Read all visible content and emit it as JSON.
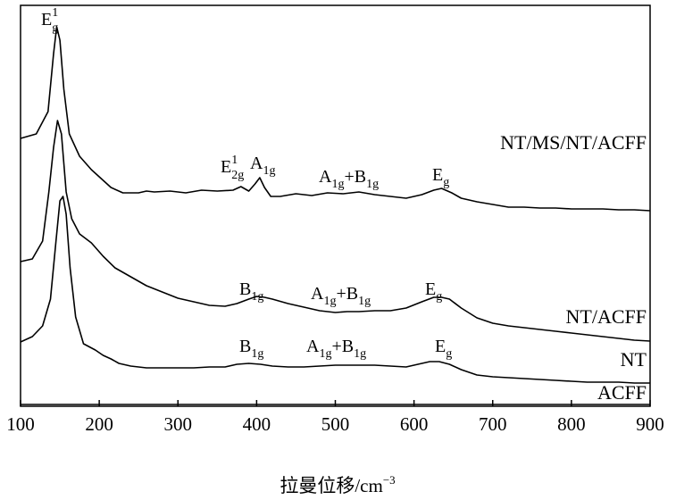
{
  "chart_data": {
    "type": "line",
    "title": "",
    "xlabel_main": "拉曼位移/cm",
    "xlabel_sup": "−3",
    "ylabel": "",
    "xlim": [
      100,
      900
    ],
    "x_ticks": [
      100,
      200,
      300,
      400,
      500,
      600,
      700,
      800,
      900
    ],
    "y_axis": "arbitrary intensity, stacked spectra, no ticks",
    "grid": false,
    "series": [
      {
        "name": "NT/MS/NT/ACFF",
        "points": [
          [
            100,
            155
          ],
          [
            120,
            150
          ],
          [
            135,
            125
          ],
          [
            142,
            60
          ],
          [
            146,
            30
          ],
          [
            150,
            45
          ],
          [
            155,
            100
          ],
          [
            162,
            150
          ],
          [
            175,
            175
          ],
          [
            190,
            190
          ],
          [
            205,
            202
          ],
          [
            215,
            210
          ],
          [
            230,
            216
          ],
          [
            250,
            216
          ],
          [
            260,
            214
          ],
          [
            270,
            215
          ],
          [
            290,
            214
          ],
          [
            310,
            216
          ],
          [
            330,
            213
          ],
          [
            350,
            214
          ],
          [
            370,
            213
          ],
          [
            380,
            209
          ],
          [
            390,
            214
          ],
          [
            398,
            206
          ],
          [
            404,
            199
          ],
          [
            410,
            210
          ],
          [
            418,
            220
          ],
          [
            430,
            220
          ],
          [
            450,
            217
          ],
          [
            470,
            219
          ],
          [
            490,
            216
          ],
          [
            510,
            217
          ],
          [
            530,
            215
          ],
          [
            550,
            218
          ],
          [
            570,
            220
          ],
          [
            590,
            222
          ],
          [
            610,
            218
          ],
          [
            625,
            213
          ],
          [
            635,
            211
          ],
          [
            648,
            216
          ],
          [
            660,
            222
          ],
          [
            680,
            226
          ],
          [
            700,
            229
          ],
          [
            720,
            232
          ],
          [
            740,
            232
          ],
          [
            760,
            233
          ],
          [
            780,
            233
          ],
          [
            800,
            234
          ],
          [
            820,
            234
          ],
          [
            840,
            234
          ],
          [
            860,
            235
          ],
          [
            880,
            235
          ],
          [
            900,
            236
          ]
        ]
      },
      {
        "name": "NT/ACFF",
        "points": [
          [
            100,
            293
          ],
          [
            115,
            290
          ],
          [
            128,
            270
          ],
          [
            136,
            215
          ],
          [
            142,
            165
          ],
          [
            147,
            135
          ],
          [
            152,
            150
          ],
          [
            158,
            215
          ],
          [
            165,
            245
          ],
          [
            175,
            262
          ],
          [
            190,
            272
          ],
          [
            205,
            287
          ],
          [
            220,
            300
          ],
          [
            240,
            310
          ],
          [
            260,
            320
          ],
          [
            280,
            327
          ],
          [
            300,
            334
          ],
          [
            320,
            338
          ],
          [
            340,
            342
          ],
          [
            360,
            343
          ],
          [
            375,
            340
          ],
          [
            390,
            335
          ],
          [
            400,
            332
          ],
          [
            410,
            333
          ],
          [
            420,
            335
          ],
          [
            440,
            340
          ],
          [
            460,
            344
          ],
          [
            480,
            348
          ],
          [
            500,
            350
          ],
          [
            515,
            349
          ],
          [
            530,
            349
          ],
          [
            550,
            348
          ],
          [
            570,
            348
          ],
          [
            590,
            345
          ],
          [
            610,
            338
          ],
          [
            625,
            333
          ],
          [
            635,
            333
          ],
          [
            645,
            335
          ],
          [
            660,
            345
          ],
          [
            680,
            356
          ],
          [
            700,
            362
          ],
          [
            720,
            365
          ],
          [
            740,
            367
          ],
          [
            760,
            369
          ],
          [
            780,
            371
          ],
          [
            800,
            373
          ],
          [
            820,
            375
          ],
          [
            840,
            377
          ],
          [
            860,
            379
          ],
          [
            880,
            381
          ],
          [
            900,
            382
          ]
        ]
      },
      {
        "name": "NT",
        "points": [
          [
            100,
            383
          ],
          [
            115,
            377
          ],
          [
            128,
            365
          ],
          [
            138,
            335
          ],
          [
            145,
            270
          ],
          [
            150,
            225
          ],
          [
            154,
            220
          ],
          [
            158,
            240
          ],
          [
            163,
            300
          ],
          [
            170,
            355
          ],
          [
            180,
            385
          ],
          [
            195,
            392
          ],
          [
            205,
            398
          ],
          [
            215,
            402
          ],
          [
            225,
            407
          ],
          [
            240,
            410
          ],
          [
            260,
            412
          ],
          [
            280,
            412
          ],
          [
            300,
            412
          ],
          [
            320,
            412
          ],
          [
            340,
            411
          ],
          [
            360,
            411
          ],
          [
            375,
            408
          ],
          [
            390,
            407
          ],
          [
            405,
            408
          ],
          [
            420,
            410
          ],
          [
            440,
            411
          ],
          [
            460,
            411
          ],
          [
            480,
            410
          ],
          [
            500,
            409
          ],
          [
            515,
            409
          ],
          [
            530,
            409
          ],
          [
            550,
            409
          ],
          [
            570,
            410
          ],
          [
            590,
            411
          ],
          [
            605,
            408
          ],
          [
            620,
            405
          ],
          [
            632,
            405
          ],
          [
            645,
            408
          ],
          [
            660,
            414
          ],
          [
            680,
            420
          ],
          [
            700,
            422
          ],
          [
            720,
            423
          ],
          [
            740,
            424
          ],
          [
            760,
            425
          ],
          [
            780,
            426
          ],
          [
            800,
            427
          ],
          [
            820,
            428
          ],
          [
            840,
            428
          ],
          [
            860,
            428
          ],
          [
            880,
            429
          ],
          [
            900,
            429
          ]
        ]
      },
      {
        "name": "ACFF",
        "points": [
          [
            100,
            453
          ],
          [
            200,
            453
          ],
          [
            300,
            453
          ],
          [
            400,
            453
          ],
          [
            500,
            453
          ],
          [
            600,
            453
          ],
          [
            700,
            453
          ],
          [
            800,
            453
          ],
          [
            900,
            453
          ]
        ]
      }
    ],
    "series_labels": [
      "NT/MS/NT/ACFF",
      "NT/ACFF",
      "NT",
      "ACFF"
    ],
    "annotations": [
      {
        "base": "E",
        "sub": "g",
        "sup": "1",
        "near_x": 155,
        "near_series": "NT/MS/NT/ACFF"
      },
      {
        "base": "E",
        "sub": "2g",
        "sup": "1",
        "near_x": 380,
        "near_series": "NT/MS/NT/ACFF"
      },
      {
        "base": "A",
        "sub": "1g",
        "sup": "",
        "near_x": 404,
        "near_series": "NT/MS/NT/ACFF"
      },
      {
        "base": "A",
        "sub": "1g",
        "plus": "+B",
        "sub2": "1g",
        "near_x": 510,
        "near_series": "NT/MS/NT/ACFF"
      },
      {
        "base": "E",
        "sub": "g",
        "sup": "",
        "near_x": 635,
        "near_series": "NT/MS/NT/ACFF"
      },
      {
        "base": "B",
        "sub": "1g",
        "sup": "",
        "near_x": 395,
        "near_series": "NT/ACFF"
      },
      {
        "base": "A",
        "sub": "1g",
        "plus": "+B",
        "sub2": "1g",
        "near_x": 510,
        "near_series": "NT/ACFF"
      },
      {
        "base": "E",
        "sub": "g",
        "sup": "",
        "near_x": 635,
        "near_series": "NT/ACFF"
      },
      {
        "base": "B",
        "sub": "1g",
        "sup": "",
        "near_x": 395,
        "near_series": "NT"
      },
      {
        "base": "A",
        "sub": "1g",
        "plus": "+B",
        "sub2": "1g",
        "near_x": 510,
        "near_series": "NT"
      },
      {
        "base": "E",
        "sub": "g",
        "sup": "",
        "near_x": 635,
        "near_series": "NT"
      }
    ]
  }
}
